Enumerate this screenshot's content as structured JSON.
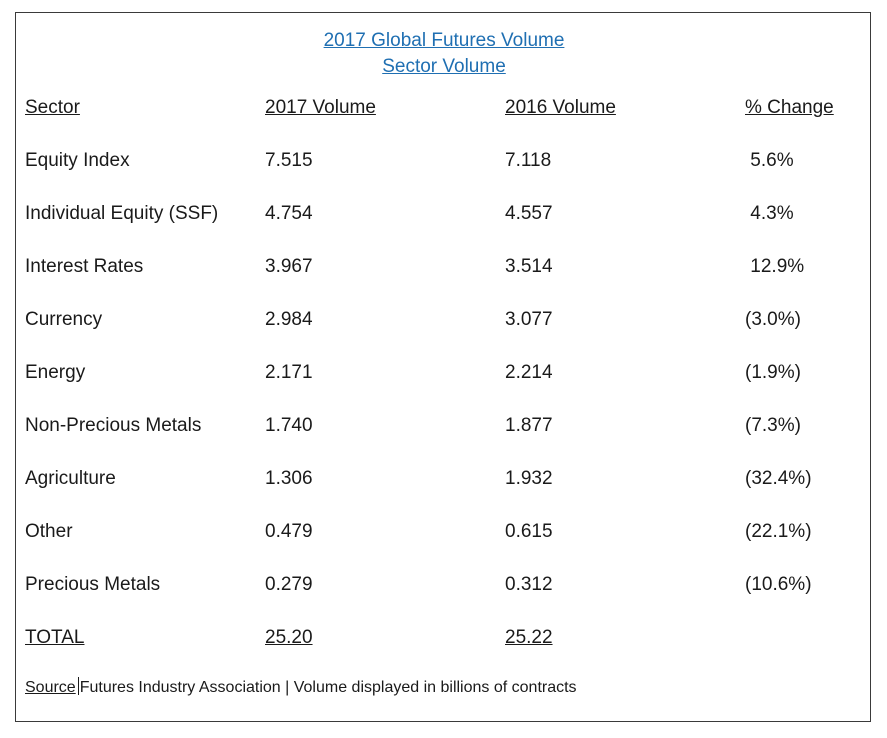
{
  "title": {
    "line1": "2017 Global Futures Volume",
    "line2": "Sector Volume"
  },
  "table": {
    "headers": [
      "Sector",
      "2017 Volume",
      "2016 Volume",
      "% Change"
    ],
    "rows": [
      [
        "Equity Index",
        "7.515",
        "7.118",
        " 5.6%"
      ],
      [
        "Individual Equity (SSF)",
        "4.754",
        "4.557",
        " 4.3%"
      ],
      [
        "Interest Rates",
        "3.967",
        "3.514",
        " 12.9%"
      ],
      [
        "Currency",
        "2.984",
        "3.077",
        "(3.0%)"
      ],
      [
        "Energy",
        "2.171",
        "2.214",
        "(1.9%)"
      ],
      [
        "Non-Precious Metals",
        "1.740",
        "1.877",
        "(7.3%)"
      ],
      [
        "Agriculture",
        "1.306",
        "1.932",
        "(32.4%)"
      ],
      [
        "Other",
        "0.479",
        "0.615",
        "(22.1%)"
      ],
      [
        "Precious Metals",
        "0.279",
        "0.312",
        "(10.6%)"
      ]
    ],
    "total": [
      "TOTAL",
      "25.20",
      "25.22",
      ""
    ]
  },
  "footer": {
    "source_label": "Source",
    "source_text": "Futures Industry Association | Volume displayed in billions of contracts"
  },
  "colors": {
    "link": "#1f6fb2",
    "text": "#1a1a1a",
    "border": "#3a3a3a"
  }
}
